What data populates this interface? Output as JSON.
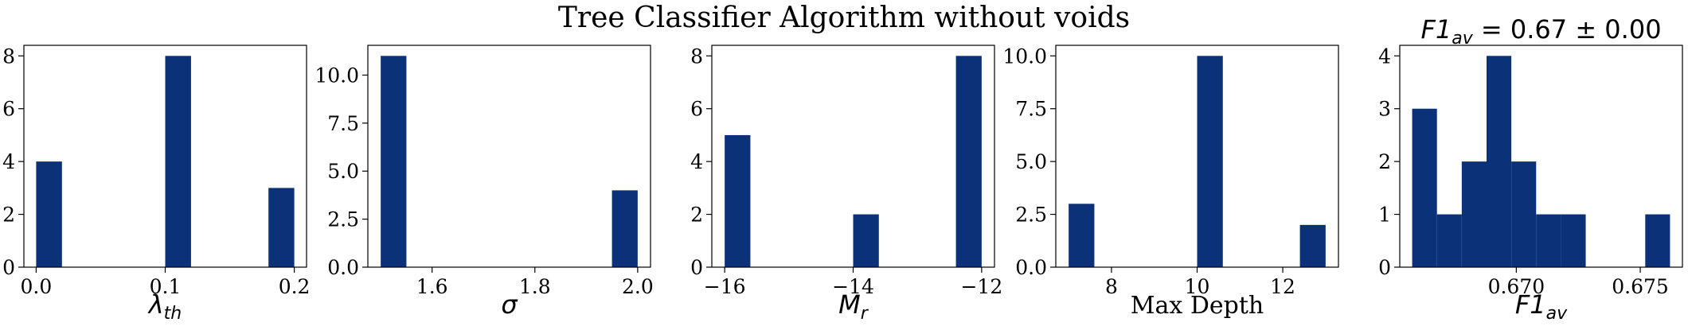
{
  "figure": {
    "title": "Tree Classifier Algorithm without voids",
    "bar_color": "#0b3278"
  },
  "chart_data": [
    {
      "type": "bar",
      "xlabel_main": "λ",
      "xlabel_sub": "th",
      "title_main": "",
      "title_sub": "",
      "title_rest": "",
      "xlim": [
        -0.0095,
        0.2095
      ],
      "ylim": [
        0,
        8.4
      ],
      "bars": [
        {
          "x0": 0.0,
          "x1": 0.02,
          "value": 4
        },
        {
          "x0": 0.1,
          "x1": 0.12,
          "value": 8
        },
        {
          "x0": 0.18,
          "x1": 0.2,
          "value": 3
        }
      ],
      "xticks": [
        {
          "v": 0.0,
          "label": "0.0"
        },
        {
          "v": 0.1,
          "label": "0.1"
        },
        {
          "v": 0.2,
          "label": "0.2"
        }
      ],
      "yticks": [
        {
          "v": 0,
          "label": "0"
        },
        {
          "v": 2,
          "label": "2"
        },
        {
          "v": 4,
          "label": "4"
        },
        {
          "v": 6,
          "label": "6"
        },
        {
          "v": 8,
          "label": "8"
        }
      ]
    },
    {
      "type": "bar",
      "xlabel_main": "σ",
      "xlabel_sub": "",
      "title_main": "",
      "title_sub": "",
      "title_rest": "",
      "xlim": [
        1.475,
        2.025
      ],
      "ylim": [
        0,
        11.55
      ],
      "bars": [
        {
          "x0": 1.5,
          "x1": 1.55,
          "value": 11
        },
        {
          "x0": 1.95,
          "x1": 2.0,
          "value": 4
        }
      ],
      "xticks": [
        {
          "v": 1.6,
          "label": "1.6"
        },
        {
          "v": 1.8,
          "label": "1.8"
        },
        {
          "v": 2.0,
          "label": "2.0"
        }
      ],
      "yticks": [
        {
          "v": 0,
          "label": "0.0"
        },
        {
          "v": 2.5,
          "label": "2.5"
        },
        {
          "v": 5,
          "label": "5.0"
        },
        {
          "v": 7.5,
          "label": "7.5"
        },
        {
          "v": 10,
          "label": "10.0"
        }
      ]
    },
    {
      "type": "bar",
      "xlabel_main": "M",
      "xlabel_sub": "r",
      "title_main": "",
      "title_sub": "",
      "title_rest": "",
      "xlim": [
        -16.2,
        -11.8
      ],
      "ylim": [
        0,
        8.4
      ],
      "bars": [
        {
          "x0": -16.0,
          "x1": -15.6,
          "value": 5
        },
        {
          "x0": -14.0,
          "x1": -13.6,
          "value": 2
        },
        {
          "x0": -12.4,
          "x1": -12.0,
          "value": 8
        }
      ],
      "xticks": [
        {
          "v": -16,
          "label": "−16"
        },
        {
          "v": -14,
          "label": "−14"
        },
        {
          "v": -12,
          "label": "−12"
        }
      ],
      "yticks": [
        {
          "v": 0,
          "label": "0"
        },
        {
          "v": 2,
          "label": "2"
        },
        {
          "v": 4,
          "label": "4"
        },
        {
          "v": 6,
          "label": "6"
        },
        {
          "v": 8,
          "label": "8"
        }
      ]
    },
    {
      "type": "bar",
      "xlabel_main": "Max Depth",
      "xlabel_sub": "",
      "xlabel_serif": true,
      "title_main": "",
      "title_sub": "",
      "title_rest": "",
      "xlim": [
        6.7,
        13.3
      ],
      "ylim": [
        0,
        10.5
      ],
      "bars": [
        {
          "x0": 7.0,
          "x1": 7.6,
          "value": 3
        },
        {
          "x0": 10.0,
          "x1": 10.6,
          "value": 10
        },
        {
          "x0": 12.4,
          "x1": 13.0,
          "value": 2
        }
      ],
      "xticks": [
        {
          "v": 8,
          "label": "8"
        },
        {
          "v": 10,
          "label": "10"
        },
        {
          "v": 12,
          "label": "12"
        }
      ],
      "yticks": [
        {
          "v": 0,
          "label": "0.0"
        },
        {
          "v": 2.5,
          "label": "2.5"
        },
        {
          "v": 5,
          "label": "5.0"
        },
        {
          "v": 7.5,
          "label": "7.5"
        },
        {
          "v": 10,
          "label": "10.0"
        }
      ]
    },
    {
      "type": "bar",
      "xlabel_main": "F1",
      "xlabel_sub": "av",
      "title_main": "F1",
      "title_sub": "av",
      "title_rest": " = 0.67 ± 0.00",
      "xlim": [
        0.6653,
        0.6767
      ],
      "ylim": [
        0,
        4.2
      ],
      "bars": [
        {
          "x0": 0.6658,
          "x1": 0.6668,
          "value": 3
        },
        {
          "x0": 0.6668,
          "x1": 0.6678,
          "value": 1
        },
        {
          "x0": 0.6678,
          "x1": 0.6688,
          "value": 2
        },
        {
          "x0": 0.6688,
          "x1": 0.6698,
          "value": 4
        },
        {
          "x0": 0.6698,
          "x1": 0.6708,
          "value": 2
        },
        {
          "x0": 0.6708,
          "x1": 0.6718,
          "value": 1
        },
        {
          "x0": 0.6718,
          "x1": 0.6728,
          "value": 1
        },
        {
          "x0": 0.6752,
          "x1": 0.6762,
          "value": 1
        }
      ],
      "xticks": [
        {
          "v": 0.67,
          "label": "0.670"
        },
        {
          "v": 0.675,
          "label": "0.675"
        }
      ],
      "yticks": [
        {
          "v": 0,
          "label": "0"
        },
        {
          "v": 1,
          "label": "1"
        },
        {
          "v": 2,
          "label": "2"
        },
        {
          "v": 3,
          "label": "3"
        },
        {
          "v": 4,
          "label": "4"
        }
      ]
    }
  ]
}
